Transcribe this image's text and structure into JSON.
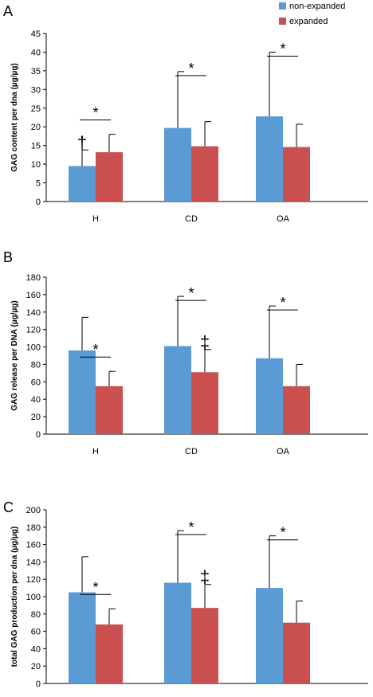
{
  "colors": {
    "non_expanded": "#5b9bd5",
    "expanded": "#c9504f",
    "axis": "#000000"
  },
  "legend": [
    {
      "label": "non-expanded",
      "color": "#5b9bd5"
    },
    {
      "label": "expanded",
      "color": "#c9504f"
    }
  ],
  "chart_data": [
    {
      "type": "bar",
      "panel_label": "A",
      "ylabel": "GAG content per dna (µg/µg)",
      "xlabel": "",
      "categories": [
        "H",
        "CD",
        "OA"
      ],
      "ylim": [
        0,
        45
      ],
      "yticks": [
        0,
        5,
        10,
        15,
        20,
        25,
        30,
        35,
        40,
        45
      ],
      "series": [
        {
          "name": "non-expanded",
          "values": [
            9.5,
            19.7,
            22.8
          ],
          "errors": [
            4.3,
            15.1,
            17.2
          ]
        },
        {
          "name": "expanded",
          "values": [
            13.2,
            14.8,
            14.6
          ],
          "errors": [
            4.8,
            6.6,
            6.1
          ]
        }
      ],
      "significance": [
        {
          "category": "H",
          "symbol": "*"
        },
        {
          "category": "CD",
          "symbol": "*"
        },
        {
          "category": "OA",
          "symbol": "*"
        }
      ],
      "annotations": [
        {
          "category": "H",
          "series": "non-expanded",
          "symbol": "†"
        }
      ]
    },
    {
      "type": "bar",
      "panel_label": "B",
      "ylabel": "GAG release per DNA (µg/µg)",
      "xlabel": "",
      "categories": [
        "H",
        "CD",
        "OA"
      ],
      "ylim": [
        0,
        180
      ],
      "yticks": [
        0,
        20,
        40,
        60,
        80,
        100,
        120,
        140,
        160,
        180
      ],
      "series": [
        {
          "name": "non-expanded",
          "values": [
            96,
            101,
            87
          ],
          "errors": [
            38,
            57,
            60
          ]
        },
        {
          "name": "expanded",
          "values": [
            55,
            71,
            55
          ],
          "errors": [
            17,
            26,
            25
          ]
        }
      ],
      "significance": [
        {
          "category": "H",
          "symbol": "*"
        },
        {
          "category": "CD",
          "symbol": "*"
        },
        {
          "category": "OA",
          "symbol": "*"
        }
      ],
      "annotations": [
        {
          "category": "CD",
          "series": "expanded",
          "symbol": "‡"
        }
      ]
    },
    {
      "type": "bar",
      "panel_label": "C",
      "ylabel": "total GAG production per dna (µg/µg)",
      "xlabel": "",
      "categories": [
        "H",
        "CD",
        "OA"
      ],
      "ylim": [
        0,
        200
      ],
      "yticks": [
        0,
        20,
        40,
        60,
        80,
        100,
        120,
        140,
        160,
        180,
        200
      ],
      "series": [
        {
          "name": "non-expanded",
          "values": [
            105,
            116,
            110
          ],
          "errors": [
            41,
            60,
            60
          ]
        },
        {
          "name": "expanded",
          "values": [
            68,
            87,
            70
          ],
          "errors": [
            18,
            27,
            25
          ]
        }
      ],
      "significance": [
        {
          "category": "H",
          "symbol": "*"
        },
        {
          "category": "CD",
          "symbol": "*"
        },
        {
          "category": "OA",
          "symbol": "*"
        }
      ],
      "annotations": [
        {
          "category": "CD",
          "series": "expanded",
          "symbol": "‡"
        }
      ]
    }
  ]
}
